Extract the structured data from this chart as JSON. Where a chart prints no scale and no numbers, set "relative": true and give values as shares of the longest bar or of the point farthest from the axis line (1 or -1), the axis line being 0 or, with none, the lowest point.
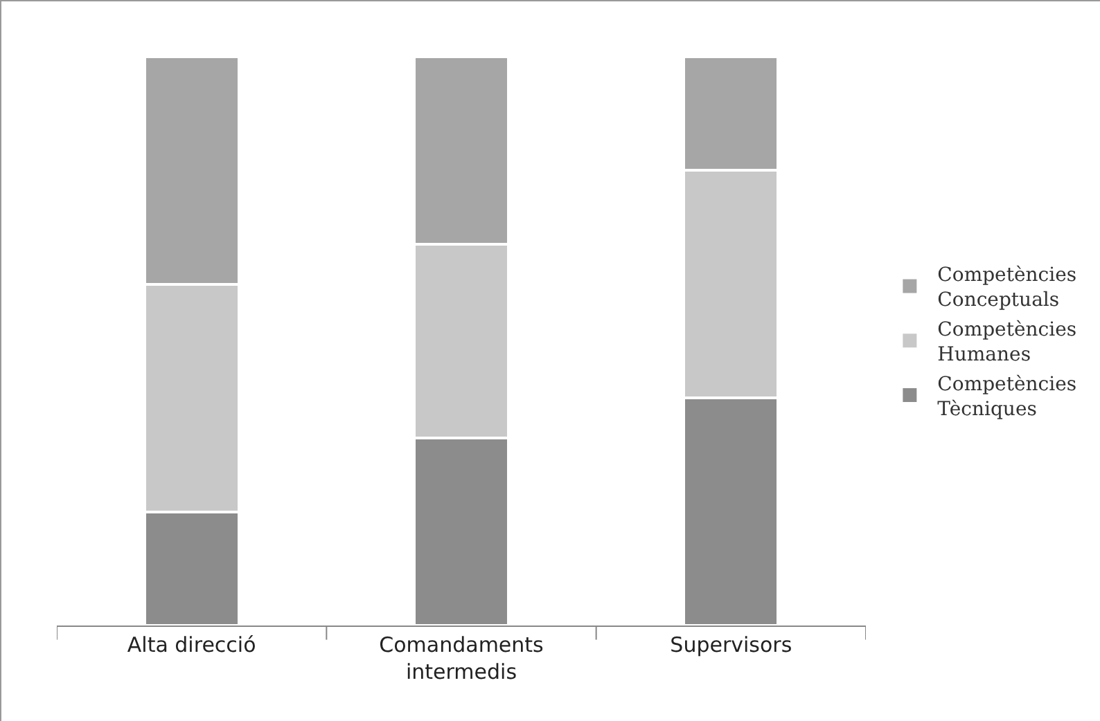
{
  "chart_data": {
    "type": "bar",
    "stacked": true,
    "relative": true,
    "categories": [
      "Alta direcció",
      "Comandaments intermedis",
      "Supervisors"
    ],
    "series": [
      {
        "name": "Competències Tècniques",
        "color": "#8c8c8c",
        "values": [
          0.2,
          0.33,
          0.4
        ]
      },
      {
        "name": "Competències Humanes",
        "color": "#c8c8c8",
        "values": [
          0.4,
          0.34,
          0.4
        ]
      },
      {
        "name": "Competències Conceptuals",
        "color": "#a6a6a6",
        "values": [
          0.4,
          0.33,
          0.2
        ]
      }
    ],
    "legend": "right"
  }
}
